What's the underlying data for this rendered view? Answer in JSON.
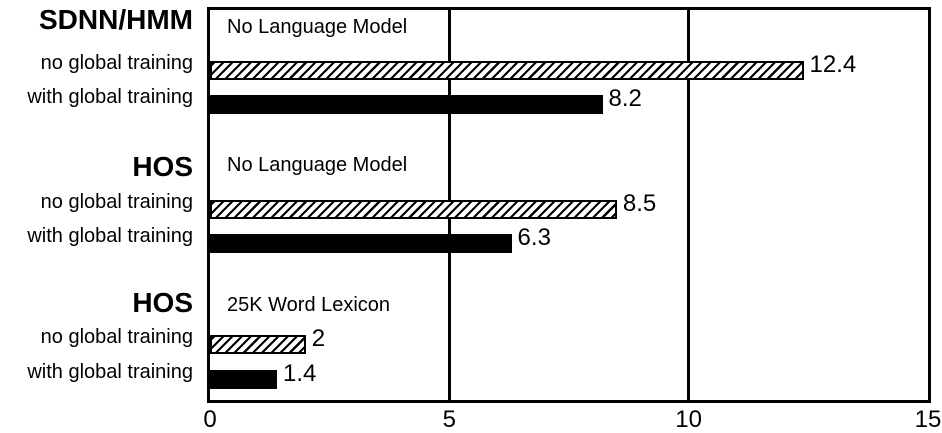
{
  "figure": {
    "background_color": "#ffffff",
    "foreground_color": "#000000"
  },
  "chart_data": {
    "type": "bar",
    "orientation": "horizontal",
    "title": "",
    "xlabel": "",
    "ylabel": "",
    "xlim": [
      0,
      15
    ],
    "xticks": [
      0,
      5,
      10,
      15
    ],
    "xtick_labels": [
      "0",
      "5",
      "10",
      "15"
    ],
    "grid": "vertical gridlines at x=5 and x=10, full plot frame box",
    "legend_position": "none",
    "bar_style_encoding": {
      "no global training": "hatched (diagonal stripes)",
      "with global training": "solid black"
    },
    "groups": [
      {
        "header": "SDNN/HMM",
        "condition": "No Language Model",
        "rows": [
          {
            "label": "no global training",
            "value": 12.4,
            "value_label": "12.4",
            "style": "hatched"
          },
          {
            "label": "with global training",
            "value": 8.2,
            "value_label": "8.2",
            "style": "solid"
          }
        ]
      },
      {
        "header": "HOS",
        "condition": "No Language Model",
        "rows": [
          {
            "label": "no global training",
            "value": 8.5,
            "value_label": "8.5",
            "style": "hatched"
          },
          {
            "label": "with global training",
            "value": 6.3,
            "value_label": "6.3",
            "style": "solid"
          }
        ]
      },
      {
        "header": "HOS",
        "condition": "25K Word Lexicon",
        "rows": [
          {
            "label": "no global training",
            "value": 2,
            "value_label": "2",
            "style": "hatched"
          },
          {
            "label": "with global training",
            "value": 1.4,
            "value_label": "1.4",
            "style": "solid"
          }
        ]
      }
    ]
  }
}
